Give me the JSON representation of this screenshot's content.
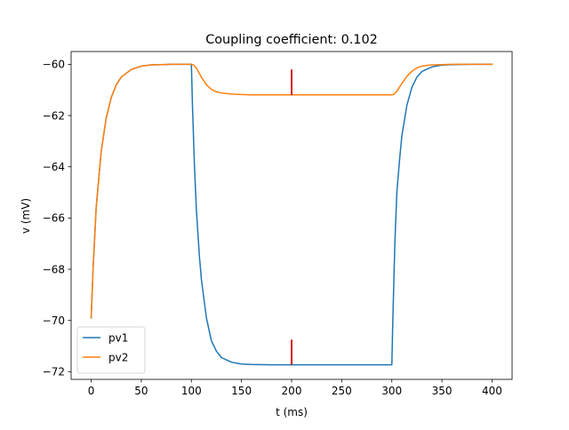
{
  "chart_data": {
    "type": "line",
    "title": "Coupling coefficient: 0.102",
    "xlabel": "t (ms)",
    "ylabel": "v (mV)",
    "xlim": [
      -20,
      420
    ],
    "ylim": [
      -72.3,
      -59.5
    ],
    "xticks": [
      0,
      50,
      100,
      150,
      200,
      250,
      300,
      350,
      400
    ],
    "yticks": [
      -72,
      -70,
      -68,
      -66,
      -64,
      -62,
      -60
    ],
    "legend_position": "lower-left",
    "series": [
      {
        "name": "pv1",
        "color": "#1f77b4",
        "x": [
          0,
          2,
          5,
          10,
          15,
          20,
          25,
          30,
          40,
          50,
          60,
          70,
          80,
          90,
          100,
          101,
          103,
          105,
          108,
          110,
          115,
          120,
          125,
          130,
          140,
          150,
          160,
          180,
          200,
          250,
          300,
          301,
          303,
          305,
          308,
          310,
          315,
          320,
          325,
          330,
          340,
          350,
          360,
          380,
          400
        ],
        "y": [
          -69.9,
          -67.9,
          -65.6,
          -63.4,
          -62.1,
          -61.3,
          -60.8,
          -60.5,
          -60.2,
          -60.07,
          -60.02,
          -60.01,
          -60.0,
          -60.0,
          -60.0,
          -61.5,
          -63.9,
          -65.7,
          -67.5,
          -68.4,
          -69.9,
          -70.8,
          -71.2,
          -71.45,
          -71.63,
          -71.7,
          -71.72,
          -71.73,
          -71.73,
          -71.73,
          -71.73,
          -70.0,
          -67.0,
          -65.0,
          -63.6,
          -62.8,
          -61.6,
          -60.9,
          -60.5,
          -60.28,
          -60.1,
          -60.03,
          -60.01,
          -60.0,
          -60.0
        ]
      },
      {
        "name": "pv2",
        "color": "#ff7f0e",
        "x": [
          0,
          2,
          5,
          10,
          15,
          20,
          25,
          30,
          40,
          50,
          60,
          70,
          80,
          90,
          100,
          102,
          105,
          110,
          115,
          120,
          125,
          130,
          140,
          150,
          160,
          180,
          200,
          250,
          290,
          300,
          302,
          305,
          310,
          315,
          320,
          325,
          330,
          340,
          350,
          360,
          380,
          400
        ],
        "y": [
          -69.9,
          -67.9,
          -65.6,
          -63.4,
          -62.1,
          -61.3,
          -60.8,
          -60.5,
          -60.2,
          -60.07,
          -60.02,
          -60.01,
          -60.0,
          -60.0,
          -60.0,
          -60.02,
          -60.15,
          -60.5,
          -60.8,
          -60.98,
          -61.07,
          -61.12,
          -61.16,
          -61.18,
          -61.19,
          -61.19,
          -61.19,
          -61.19,
          -61.19,
          -61.19,
          -61.17,
          -61.05,
          -60.75,
          -60.47,
          -60.27,
          -60.14,
          -60.07,
          -60.02,
          -60.01,
          -60.0,
          -60.0,
          -60.0
        ]
      }
    ],
    "annotations": [
      {
        "type": "vline",
        "x": 200,
        "y0": -61.2,
        "y1": -60.2,
        "color": "#d00000"
      },
      {
        "type": "vline",
        "x": 200,
        "y0": -71.73,
        "y1": -70.75,
        "color": "#d00000"
      }
    ]
  }
}
